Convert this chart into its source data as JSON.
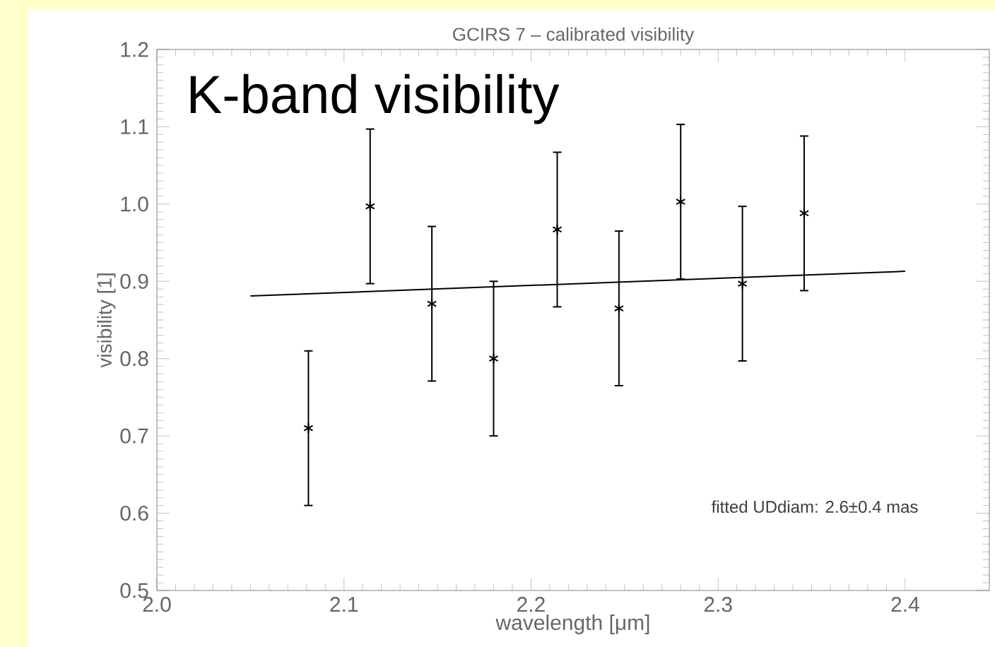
{
  "chart_data": {
    "type": "scatter",
    "title": "GCIRS 7 – calibrated visibility",
    "xlabel": "wavelength [μm]",
    "ylabel": "visibility [1]",
    "annotations": [
      "K-band visibility",
      "fitted UDdiam: 2.6±0.4 mas"
    ],
    "xlim": [
      2.0,
      2.445
    ],
    "ylim": [
      0.5,
      1.2
    ],
    "xticks": [
      {
        "value": 2.0,
        "label": "2.0"
      },
      2.1,
      2.2,
      2.3,
      2.4
    ],
    "yticks": [
      0.5,
      0.6,
      0.7,
      0.8,
      0.9,
      {
        "value": 1.0,
        "label": "1.0"
      },
      1.1,
      1.2
    ],
    "series": [
      {
        "type": "scatter",
        "color": "#000000",
        "marker": "cross",
        "x": [
          2.081,
          2.114,
          2.147,
          2.18,
          2.214,
          2.247,
          2.28,
          2.313,
          2.346
        ],
        "values": [
          0.71,
          0.997,
          0.871,
          0.8,
          0.967,
          0.865,
          1.003,
          0.897,
          0.988
        ],
        "errors": [
          0.1,
          0.1,
          0.1,
          0.1,
          0.1,
          0.1,
          0.1,
          0.1,
          0.1
        ]
      },
      {
        "type": "line",
        "color": "#000000",
        "marker": "none",
        "x": [
          2.05,
          2.4
        ],
        "values": [
          0.881,
          0.913
        ]
      }
    ]
  }
}
